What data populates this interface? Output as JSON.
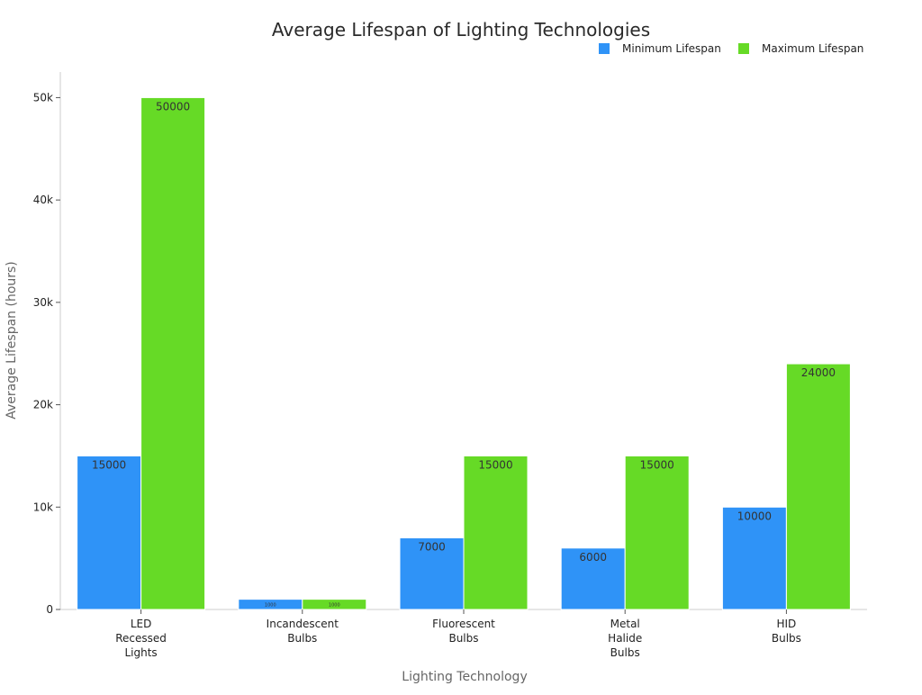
{
  "chart_data": {
    "type": "bar",
    "title": "Average Lifespan of Lighting Technologies",
    "xlabel": "Lighting Technology",
    "ylabel": "Average Lifespan (hours)",
    "categories": [
      [
        "LED",
        "Recessed",
        "Lights"
      ],
      [
        "Incandescent",
        "Bulbs"
      ],
      [
        "Fluorescent",
        "Bulbs"
      ],
      [
        "Metal",
        "Halide",
        "Bulbs"
      ],
      [
        "HID",
        "Bulbs"
      ]
    ],
    "series": [
      {
        "name": "Minimum Lifespan",
        "color": "#2f93f7",
        "values": [
          15000,
          1000,
          7000,
          6000,
          10000
        ]
      },
      {
        "name": "Maximum Lifespan",
        "color": "#66da26",
        "values": [
          50000,
          1000,
          15000,
          15000,
          24000
        ]
      }
    ],
    "ylim": [
      0,
      52500
    ],
    "yticks": [
      0,
      10000,
      20000,
      30000,
      40000,
      50000
    ],
    "ytick_labels": [
      "0",
      "10k",
      "20k",
      "30k",
      "40k",
      "50k"
    ],
    "legend_position": "top-right",
    "grid": false
  }
}
